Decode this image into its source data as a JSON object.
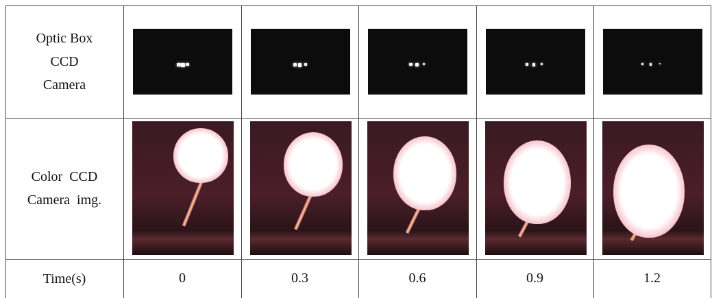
{
  "table": {
    "rows": [
      {
        "header": [
          "Optic Box",
          "CCD",
          "Camera"
        ]
      },
      {
        "header": [
          "Color  CCD",
          "Camera  img."
        ]
      },
      {
        "header": [
          "Time(s)"
        ],
        "cells": [
          "0",
          "0.3",
          "0.6",
          "0.9",
          "1.2"
        ]
      }
    ]
  }
}
